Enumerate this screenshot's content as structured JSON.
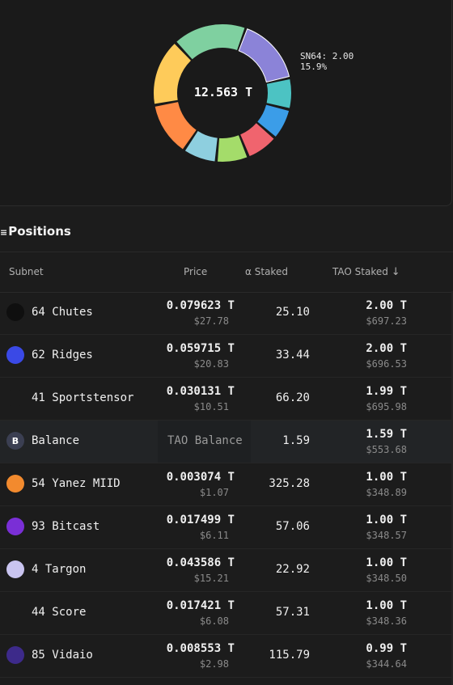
{
  "chart_data": {
    "type": "pie",
    "style": "donut",
    "center_label": "12.563 T",
    "tooltip": {
      "line1": "SN64: 2.00",
      "line2": "15.9%"
    },
    "slices": [
      {
        "label": "SN64",
        "value": 15.9,
        "color": "#8b83d8"
      },
      {
        "value": 7.4,
        "color": "#4cc3c3"
      },
      {
        "value": 7.4,
        "color": "#3b9de8"
      },
      {
        "value": 7.6,
        "color": "#f0646e"
      },
      {
        "value": 7.6,
        "color": "#a4dc6a"
      },
      {
        "value": 8.0,
        "color": "#8ecfdf"
      },
      {
        "value": 12.7,
        "color": "#ff8a45"
      },
      {
        "value": 15.9,
        "color": "#fecb5a"
      },
      {
        "value": 17.5,
        "color": "#7fd0a0"
      }
    ]
  },
  "positions": {
    "title": "Positions",
    "menu_icon": "≡",
    "headers": {
      "subnet": "Subnet",
      "price": "Price",
      "alpha_symbol": "α",
      "alpha_staked": "Staked",
      "tao_staked": "TAO Staked",
      "sort_icon": "↓"
    },
    "rows": [
      {
        "icon": "chutes-icon",
        "icon_bg": "#0f0f0f",
        "icon_text": "",
        "name": "64 Chutes",
        "price": "0.079623 T",
        "price_usd": "$27.78",
        "alpha": "25.10",
        "tao": "2.00 T",
        "tao_usd": "$697.23"
      },
      {
        "icon": "ridges-icon",
        "icon_bg": "#3a49e6",
        "icon_text": "",
        "name": "62 Ridges",
        "price": "0.059715 T",
        "price_usd": "$20.83",
        "alpha": "33.44",
        "tao": "2.00 T",
        "tao_usd": "$696.53"
      },
      {
        "icon": "sportstensor-icon",
        "icon_bg": "#1c1c1c",
        "icon_text": "",
        "name": "41 Sportstensor",
        "price": "0.030131 T",
        "price_usd": "$10.51",
        "alpha": "66.20",
        "tao": "1.99 T",
        "tao_usd": "$695.98"
      },
      {
        "icon": "balance-icon",
        "icon_bg": "#3b3f52",
        "icon_text": "B",
        "name": "Balance",
        "balance_label": "TAO Balance",
        "alpha": "1.59",
        "tao": "1.59 T",
        "tao_usd": "$553.68"
      },
      {
        "icon": "yanez-icon",
        "icon_bg": "#f28a2e",
        "icon_text": "",
        "name": "54 Yanez MIID",
        "price": "0.003074 T",
        "price_usd": "$1.07",
        "alpha": "325.28",
        "tao": "1.00 T",
        "tao_usd": "$348.89"
      },
      {
        "icon": "bitcast-icon",
        "icon_bg": "#7a2fd6",
        "icon_text": "",
        "name": "93 Bitcast",
        "price": "0.017499 T",
        "price_usd": "$6.11",
        "alpha": "57.06",
        "tao": "1.00 T",
        "tao_usd": "$348.57"
      },
      {
        "icon": "targon-icon",
        "icon_bg": "#c9c4f0",
        "icon_text": "",
        "name": "4 Targon",
        "price": "0.043586 T",
        "price_usd": "$15.21",
        "alpha": "22.92",
        "tao": "1.00 T",
        "tao_usd": "$348.50"
      },
      {
        "icon": "score-icon",
        "icon_bg": "#1c1c1c",
        "icon_text": "",
        "name": "44 Score",
        "price": "0.017421 T",
        "price_usd": "$6.08",
        "alpha": "57.31",
        "tao": "1.00 T",
        "tao_usd": "$348.36"
      },
      {
        "icon": "vidaio-icon",
        "icon_bg": "#3d2a8a",
        "icon_text": "",
        "name": "85 Vidaio",
        "price": "0.008553 T",
        "price_usd": "$2.98",
        "alpha": "115.79",
        "tao": "0.99 T",
        "tao_usd": "$344.64"
      }
    ]
  }
}
